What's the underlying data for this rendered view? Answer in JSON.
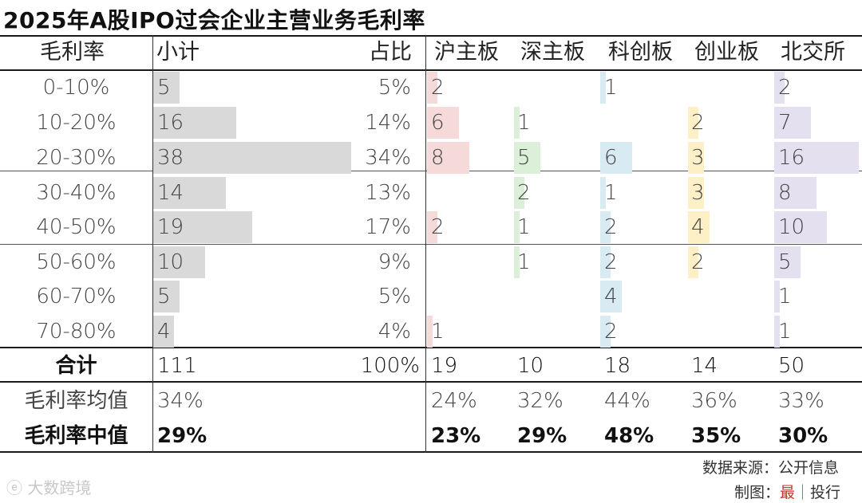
{
  "title": "2025年A股IPO过会企业主营业务毛利率",
  "headers": {
    "col0": "毛利率",
    "col1": "小计",
    "col2": "占比",
    "boards": [
      "沪主板",
      "深主板",
      "科创板",
      "创业板",
      "北交所"
    ]
  },
  "rows": [
    {
      "label": "0-10%",
      "total": "5",
      "pct": "5%",
      "boards": [
        "2",
        "",
        "1",
        "",
        "2"
      ]
    },
    {
      "label": "10-20%",
      "total": "16",
      "pct": "14%",
      "boards": [
        "6",
        "1",
        "",
        "2",
        "7"
      ]
    },
    {
      "label": "20-30%",
      "total": "38",
      "pct": "34%",
      "boards": [
        "8",
        "5",
        "6",
        "3",
        "16"
      ]
    },
    {
      "label": "30-40%",
      "total": "14",
      "pct": "13%",
      "boards": [
        "",
        "2",
        "1",
        "3",
        "8"
      ]
    },
    {
      "label": "40-50%",
      "total": "19",
      "pct": "17%",
      "boards": [
        "2",
        "1",
        "2",
        "4",
        "10"
      ]
    },
    {
      "label": "50-60%",
      "total": "10",
      "pct": "9%",
      "boards": [
        "",
        "1",
        "2",
        "2",
        "5"
      ]
    },
    {
      "label": "60-70%",
      "total": "5",
      "pct": "5%",
      "boards": [
        "",
        "",
        "4",
        "",
        "1"
      ]
    },
    {
      "label": "70-80%",
      "total": "4",
      "pct": "4%",
      "boards": [
        "1",
        "",
        "2",
        "",
        "1"
      ]
    }
  ],
  "sum_row": {
    "label": "合计",
    "total": "111",
    "pct": "100%",
    "boards": [
      "19",
      "10",
      "18",
      "14",
      "50"
    ]
  },
  "avg_row": {
    "label": "毛利率均值",
    "total": "34%",
    "boards": [
      "24%",
      "32%",
      "44%",
      "36%",
      "33%"
    ]
  },
  "median_row": {
    "label": "毛利率中值",
    "total": "29%",
    "boards": [
      "23%",
      "29%",
      "48%",
      "35%",
      "30%"
    ]
  },
  "footer": {
    "source": "数据来源：公开信息",
    "maker_prefix": "制图：",
    "maker_red": "最｜",
    "maker_suffix": "投行"
  },
  "watermark": "大数跨境",
  "colors": {
    "total_bar": "#d9d9d9",
    "sh_bar": "#f6dada",
    "sz_bar": "#dcefd8",
    "kc_bar": "#d8eaf2",
    "cy_bar": "#fdefc6",
    "bj_bar": "#e4e0f0"
  },
  "chart_data": {
    "type": "table",
    "title": "2025年A股IPO过会企业主营业务毛利率",
    "categories": [
      "0-10%",
      "10-20%",
      "20-30%",
      "30-40%",
      "40-50%",
      "50-60%",
      "60-70%",
      "70-80%"
    ],
    "series": [
      {
        "name": "小计",
        "values": [
          5,
          16,
          38,
          14,
          19,
          10,
          5,
          4
        ]
      },
      {
        "name": "占比",
        "values": [
          5,
          14,
          34,
          13,
          17,
          9,
          5,
          4
        ]
      },
      {
        "name": "沪主板",
        "values": [
          2,
          6,
          8,
          0,
          2,
          0,
          0,
          1
        ]
      },
      {
        "name": "深主板",
        "values": [
          0,
          1,
          5,
          2,
          1,
          1,
          0,
          0
        ]
      },
      {
        "name": "科创板",
        "values": [
          1,
          0,
          6,
          1,
          2,
          2,
          4,
          2
        ]
      },
      {
        "name": "创业板",
        "values": [
          0,
          2,
          3,
          3,
          4,
          2,
          0,
          0
        ]
      },
      {
        "name": "北交所",
        "values": [
          2,
          7,
          16,
          8,
          10,
          5,
          1,
          1
        ]
      }
    ],
    "totals": {
      "小计": 111,
      "占比": 100,
      "沪主板": 19,
      "深主板": 10,
      "科创板": 18,
      "创业板": 14,
      "北交所": 50
    },
    "mean_gross_margin": {
      "小计": 34,
      "沪主板": 24,
      "深主板": 32,
      "科创板": 44,
      "创业板": 36,
      "北交所": 33
    },
    "median_gross_margin": {
      "小计": 29,
      "沪主板": 23,
      "深主板": 29,
      "科创板": 48,
      "创业板": 35,
      "北交所": 30
    }
  }
}
